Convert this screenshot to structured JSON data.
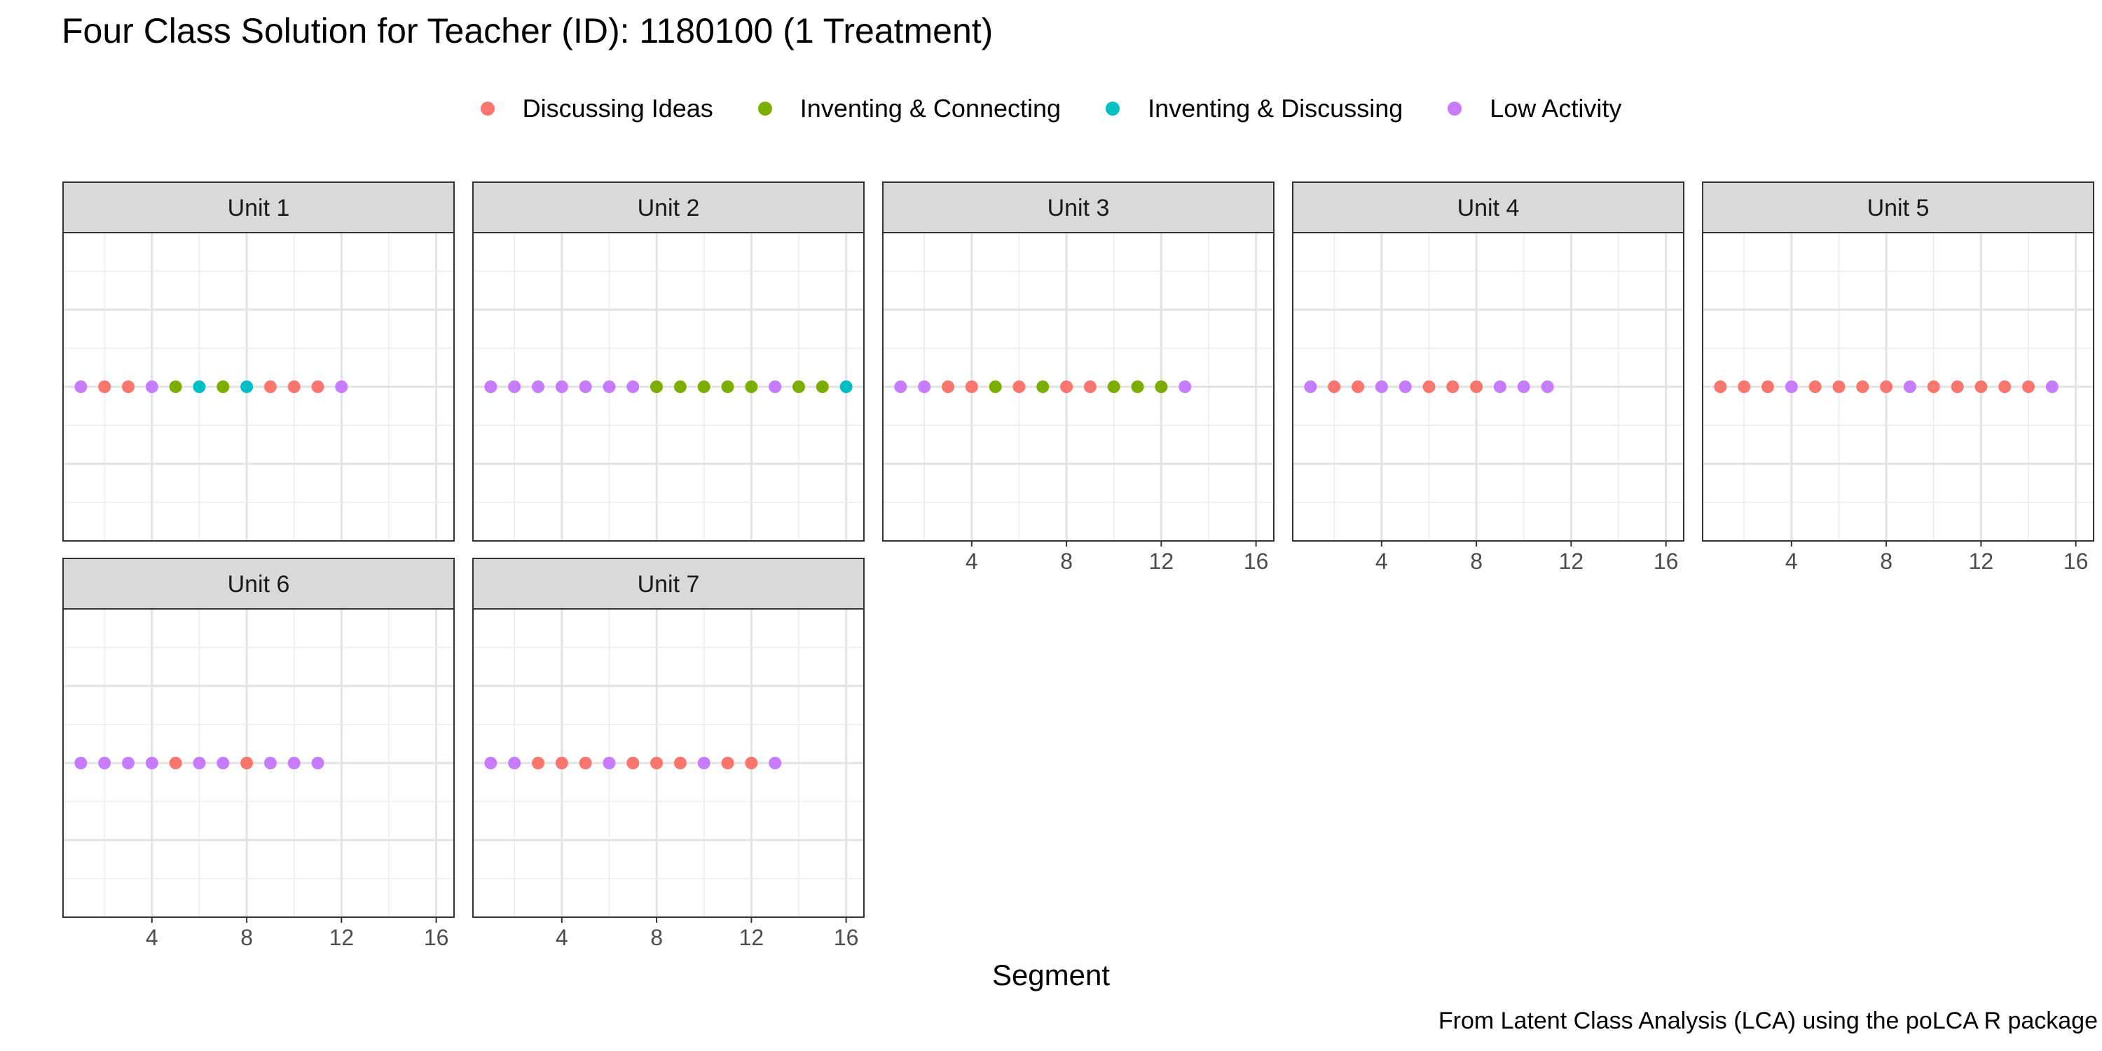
{
  "chart_data": {
    "type": "scatter",
    "title": "Four Class Solution for Teacher (ID): 1180100 (1 Treatment)",
    "xlabel": "Segment",
    "ylabel": "",
    "caption": "From Latent Class Analysis (LCA) using the poLCA R package",
    "xlim": [
      0.25,
      16.75
    ],
    "xticks": [
      4,
      8,
      12,
      16
    ],
    "grid": true,
    "legend_position": "top",
    "legend": [
      {
        "name": "Discussing Ideas",
        "color": "#F8766D"
      },
      {
        "name": "Inventing & Connecting",
        "color": "#7CAE00"
      },
      {
        "name": "Inventing & Discussing",
        "color": "#00BFC4"
      },
      {
        "name": "Low Activity",
        "color": "#C77CFF"
      }
    ],
    "class_codes": {
      "D": "Discussing Ideas",
      "C": "Inventing & Connecting",
      "I": "Inventing & Discussing",
      "L": "Low Activity"
    },
    "panels": [
      {
        "label": "Unit 1",
        "classes": [
          "L",
          "D",
          "D",
          "L",
          "C",
          "I",
          "C",
          "I",
          "D",
          "D",
          "D",
          "L"
        ]
      },
      {
        "label": "Unit 2",
        "classes": [
          "L",
          "L",
          "L",
          "L",
          "L",
          "L",
          "L",
          "C",
          "C",
          "C",
          "C",
          "C",
          "L",
          "C",
          "C",
          "I"
        ]
      },
      {
        "label": "Unit 3",
        "classes": [
          "L",
          "L",
          "D",
          "D",
          "C",
          "D",
          "C",
          "D",
          "D",
          "C",
          "C",
          "C",
          "L"
        ]
      },
      {
        "label": "Unit 4",
        "classes": [
          "L",
          "D",
          "D",
          "L",
          "L",
          "D",
          "D",
          "D",
          "L",
          "L",
          "L"
        ]
      },
      {
        "label": "Unit 5",
        "classes": [
          "D",
          "D",
          "D",
          "L",
          "D",
          "D",
          "D",
          "D",
          "L",
          "D",
          "D",
          "D",
          "D",
          "D",
          "L"
        ]
      },
      {
        "label": "Unit 6",
        "classes": [
          "L",
          "L",
          "L",
          "L",
          "D",
          "L",
          "L",
          "D",
          "L",
          "L",
          "L"
        ]
      },
      {
        "label": "Unit 7",
        "classes": [
          "L",
          "L",
          "D",
          "D",
          "D",
          "L",
          "D",
          "D",
          "D",
          "L",
          "D",
          "D",
          "L"
        ]
      }
    ]
  }
}
